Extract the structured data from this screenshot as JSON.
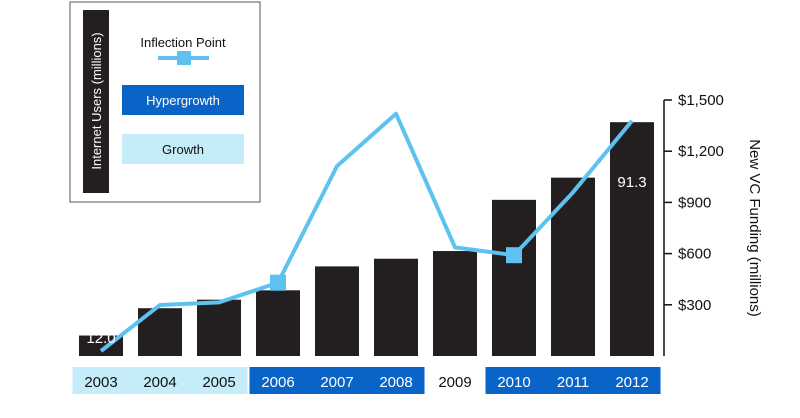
{
  "chart_data": {
    "type": "bar",
    "categories": [
      "2003",
      "2004",
      "2005",
      "2006",
      "2007",
      "2008",
      "2009",
      "2010",
      "2011",
      "2012"
    ],
    "series": [
      {
        "name": "New VC Funding (millions)",
        "type": "bar",
        "axis": "right",
        "values": [
          120,
          280,
          330,
          385,
          525,
          570,
          615,
          915,
          1045,
          1370
        ]
      },
      {
        "name": "Internet Users (millions)",
        "type": "line",
        "axis": "left",
        "values": [
          12.0,
          21,
          22,
          29.5,
          74,
          94,
          43,
          40,
          64,
          91.3
        ]
      }
    ],
    "inflection_points": [
      "2006",
      "2010"
    ],
    "data_labels": [
      {
        "category": "2003",
        "text": "12.0"
      },
      {
        "category": "2012",
        "text": "91.3"
      }
    ],
    "ylabel": "New VC Funding (millions)",
    "y_ticks": [
      "$300",
      "$600",
      "$900",
      "$1,200",
      "$1,500"
    ],
    "y_tick_values": [
      300,
      600,
      900,
      1200,
      1500
    ],
    "ylim": [
      0,
      1500
    ],
    "legend_placement": "top-left",
    "phases": [
      {
        "name": "Growth",
        "categories": [
          "2003",
          "2004",
          "2005"
        ],
        "color": "#c5ecf9"
      },
      {
        "name": "Hypergrowth",
        "categories": [
          "2006",
          "2007",
          "2008"
        ],
        "color": "#0a64c8"
      },
      {
        "name": "Hypergrowth",
        "categories": [
          "2010",
          "2011",
          "2012"
        ],
        "color": "#0a64c8"
      }
    ],
    "colors": {
      "bar": "#231f20",
      "line": "#5ec2f0",
      "marker": "#5ec2f0",
      "hypergrowth": "#0a64c8",
      "growth": "#c5ecf9"
    }
  },
  "legend": {
    "title": "Internet Users (millions)",
    "inflection_label": "Inflection Point",
    "hypergrowth_label": "Hypergrowth",
    "growth_label": "Growth"
  }
}
